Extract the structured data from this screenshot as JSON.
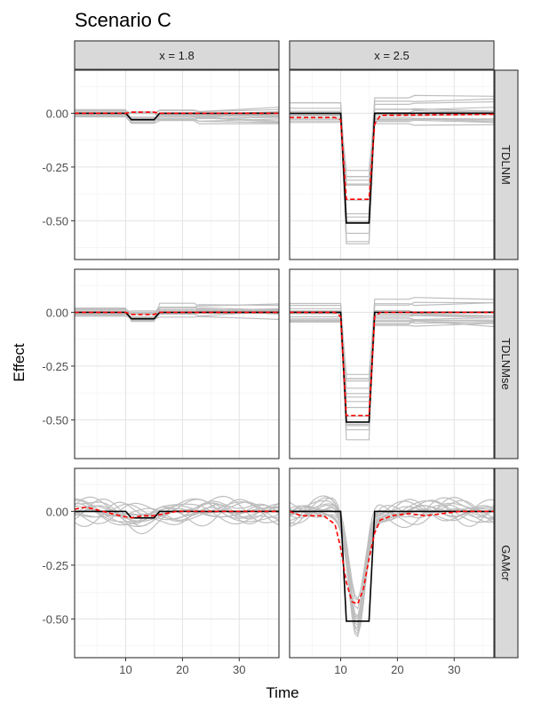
{
  "chart_data": {
    "type": "line",
    "title": "Scenario C",
    "xlabel": "Time",
    "ylabel": "Effect",
    "xlim": [
      1,
      37
    ],
    "ylim": [
      -0.68,
      0.2
    ],
    "x_ticks": [
      10,
      20,
      30
    ],
    "x_tick_labels": [
      "10",
      "20",
      "30"
    ],
    "y_ticks": [
      0.0,
      -0.25,
      -0.5
    ],
    "y_tick_labels": [
      "0.00",
      "-0.25",
      "-0.50"
    ],
    "columns": [
      "x = 1.8",
      "x = 2.5"
    ],
    "rows": [
      "TDLNM",
      "TDLNMse",
      "GAMcr"
    ],
    "legend": "none",
    "series_styles": {
      "replicates": {
        "name": "replicate estimates",
        "color": "#bebebe"
      },
      "true_effect": {
        "name": "true effect",
        "color": "#000000"
      },
      "mean_estimate": {
        "name": "mean estimate",
        "color": "#ff0000",
        "dash": "dashed"
      }
    },
    "true_effect": {
      "x = 1.8": {
        "x": [
          1,
          10,
          11,
          15,
          16,
          37
        ],
        "y": [
          0,
          0,
          -0.03,
          -0.03,
          0,
          0
        ]
      },
      "x = 2.5": {
        "x": [
          1,
          10,
          11,
          15,
          16,
          37
        ],
        "y": [
          0,
          0,
          -0.51,
          -0.51,
          0,
          0
        ]
      }
    },
    "mean_estimate": {
      "TDLNM|x = 1.8": {
        "x": [
          1,
          10,
          11,
          15,
          16,
          37
        ],
        "y": [
          0,
          0,
          0.005,
          0.005,
          0,
          0
        ]
      },
      "TDLNM|x = 2.5": {
        "x": [
          1,
          9,
          10,
          11,
          15,
          16,
          17,
          37
        ],
        "y": [
          -0.02,
          -0.02,
          -0.03,
          -0.4,
          -0.4,
          -0.05,
          -0.01,
          -0.005
        ]
      },
      "TDLNMse|x = 1.8": {
        "x": [
          1,
          10,
          11,
          15,
          16,
          37
        ],
        "y": [
          0,
          0,
          -0.01,
          -0.01,
          0,
          0
        ]
      },
      "TDLNMse|x = 2.5": {
        "x": [
          1,
          9,
          10,
          11,
          15,
          16,
          17,
          37
        ],
        "y": [
          0,
          0,
          -0.02,
          -0.48,
          -0.48,
          -0.02,
          0,
          0
        ]
      },
      "GAMcr|x = 1.8": {
        "x": [
          1,
          3,
          6,
          9,
          11,
          13,
          15,
          17,
          19,
          21,
          24,
          27,
          30,
          33,
          37
        ],
        "y": [
          0.01,
          0.02,
          0.0,
          -0.02,
          -0.03,
          -0.02,
          -0.02,
          -0.01,
          0.0,
          0.0,
          0.0,
          0.0,
          0.0,
          0.0,
          0.0
        ]
      },
      "GAMcr|x = 2.5": {
        "x": [
          1,
          3,
          5,
          7,
          9,
          10,
          11,
          12,
          13,
          14,
          15,
          16,
          17,
          19,
          22,
          25,
          28,
          31,
          34,
          37
        ],
        "y": [
          0.0,
          -0.02,
          -0.02,
          -0.02,
          -0.06,
          -0.17,
          -0.33,
          -0.42,
          -0.43,
          -0.36,
          -0.22,
          -0.1,
          -0.04,
          -0.02,
          -0.01,
          -0.02,
          -0.01,
          0.0,
          0.0,
          0.0
        ]
      }
    }
  }
}
